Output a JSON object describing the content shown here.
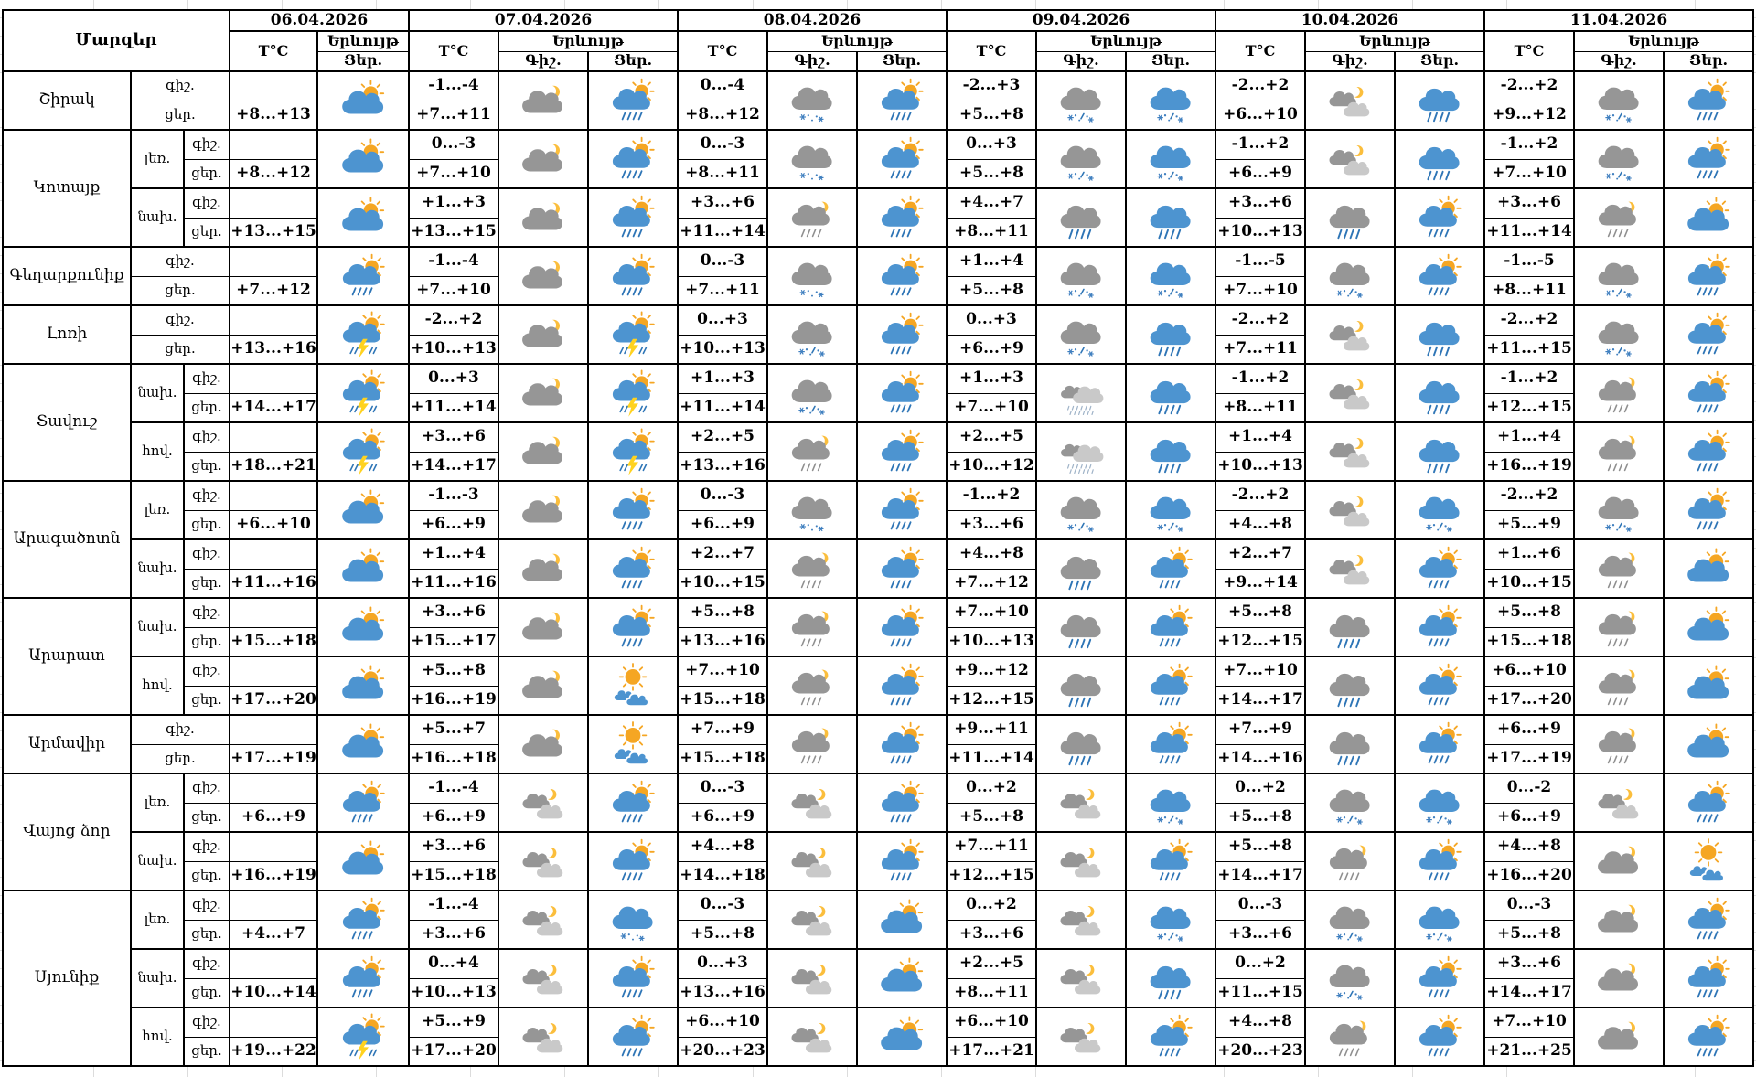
{
  "header": {
    "regions_label": "Մարզեր",
    "temp_label": "T°C",
    "phenomenon_label": "Երևույթ",
    "night_label": "Գիշ.",
    "day_label": "Ցեր.",
    "dates": [
      "06.04.2026",
      "07.04.2026",
      "08.04.2026",
      "09.04.2026",
      "10.04.2026",
      "11.04.2026"
    ]
  },
  "row_labels": {
    "night": "գիշ.",
    "day": "ցեր."
  },
  "colors": {
    "cloud_blue": "#4D94D0",
    "cloud_gray": "#969696",
    "cloud_light": "#C9C9C9",
    "sun": "#F5A623",
    "moon": "#FBBE3C",
    "rain": "#2E75B6",
    "rain_night": "#8F8F8F",
    "snow": "#3F7FBF",
    "drizzle": "#9FB3C8",
    "bolt": "#FFD21F",
    "border": "#000000",
    "gridline": "#DCDCDC"
  },
  "blocks": [
    {
      "region": "Շիրակ",
      "region_blocks": 1,
      "sub": null,
      "d06": {
        "day_temp": "+8...+13",
        "day_icon": "cloud-sun"
      },
      "days": [
        {
          "night_temp": "-1...-4",
          "day_temp": "+7...+11",
          "night_icon": "cloud-moon",
          "day_icon": "cloud-sun-rain"
        },
        {
          "night_temp": "0...-4",
          "day_temp": "+8...+12",
          "night_icon": "cloud-snow-gray",
          "day_icon": "cloud-sun-rain"
        },
        {
          "night_temp": "-2...+3",
          "day_temp": "+5...+8",
          "night_icon": "cloud-snow-rain-gray",
          "day_icon": "cloud-snow-rain-blue"
        },
        {
          "night_temp": "-2...+2",
          "day_temp": "+6...+10",
          "night_icon": "clouds-moon",
          "day_icon": "cloud-rain-blue"
        },
        {
          "night_temp": "-2...+2",
          "day_temp": "+9...+12",
          "night_icon": "cloud-snow-rain-gray",
          "day_icon": "cloud-sun-rain"
        }
      ]
    },
    {
      "region": "Կոտայք",
      "region_blocks": 2,
      "sub": "լեռ.",
      "d06": {
        "day_temp": "+8...+12",
        "day_icon": "cloud-sun"
      },
      "days": [
        {
          "night_temp": "0...-3",
          "day_temp": "+7...+10",
          "night_icon": "cloud-moon",
          "day_icon": "cloud-sun-rain"
        },
        {
          "night_temp": "0...-3",
          "day_temp": "+8...+11",
          "night_icon": "cloud-snow-gray",
          "day_icon": "cloud-sun-rain"
        },
        {
          "night_temp": "0...+3",
          "day_temp": "+5...+8",
          "night_icon": "cloud-snow-rain-gray",
          "day_icon": "cloud-snow-rain-blue"
        },
        {
          "night_temp": "-1...+2",
          "day_temp": "+6...+9",
          "night_icon": "clouds-moon",
          "day_icon": "cloud-rain-blue"
        },
        {
          "night_temp": "-1...+2",
          "day_temp": "+7...+10",
          "night_icon": "cloud-snow-rain-gray",
          "day_icon": "cloud-sun-rain"
        }
      ]
    },
    {
      "region": null,
      "sub": "նախ.",
      "d06": {
        "day_temp": "+13...+15",
        "day_icon": "cloud-sun"
      },
      "days": [
        {
          "night_temp": "+1...+3",
          "day_temp": "+13...+15",
          "night_icon": "cloud-moon",
          "day_icon": "cloud-sun-rain"
        },
        {
          "night_temp": "+3...+6",
          "day_temp": "+11...+14",
          "night_icon": "cloud-moon-rain",
          "day_icon": "cloud-sun-rain"
        },
        {
          "night_temp": "+4...+7",
          "day_temp": "+8...+11",
          "night_icon": "cloud-rain-gray",
          "day_icon": "cloud-rain-blue"
        },
        {
          "night_temp": "+3...+6",
          "day_temp": "+10...+13",
          "night_icon": "cloud-rain-gray",
          "day_icon": "cloud-sun-rain"
        },
        {
          "night_temp": "+3...+6",
          "day_temp": "+11...+14",
          "night_icon": "cloud-moon-rain",
          "day_icon": "cloud-sun"
        }
      ]
    },
    {
      "region": "Գեղարքունիք",
      "region_blocks": 1,
      "sub": null,
      "d06": {
        "day_temp": "+7...+12",
        "day_icon": "cloud-sun-rain"
      },
      "days": [
        {
          "night_temp": "-1...-4",
          "day_temp": "+7...+10",
          "night_icon": "cloud-moon",
          "day_icon": "cloud-sun-rain"
        },
        {
          "night_temp": "0...-3",
          "day_temp": "+7...+11",
          "night_icon": "cloud-snow-gray",
          "day_icon": "cloud-sun-rain"
        },
        {
          "night_temp": "+1...+4",
          "day_temp": "+5...+8",
          "night_icon": "cloud-snow-rain-gray",
          "day_icon": "cloud-snow-rain-blue"
        },
        {
          "night_temp": "-1...-5",
          "day_temp": "+7...+10",
          "night_icon": "cloud-snow-rain-gray",
          "day_icon": "cloud-sun-rain"
        },
        {
          "night_temp": "-1...-5",
          "day_temp": "+8...+11",
          "night_icon": "cloud-snow-rain-gray",
          "day_icon": "cloud-sun-rain"
        }
      ]
    },
    {
      "region": "Լոռի",
      "region_blocks": 1,
      "sub": null,
      "d06": {
        "day_temp": "+13...+16",
        "day_icon": "cloud-sun-thunder"
      },
      "days": [
        {
          "night_temp": "-2...+2",
          "day_temp": "+10...+13",
          "night_icon": "cloud-moon",
          "day_icon": "cloud-sun-thunder"
        },
        {
          "night_temp": "0...+3",
          "day_temp": "+10...+13",
          "night_icon": "cloud-snow-rain-gray",
          "day_icon": "cloud-sun-rain"
        },
        {
          "night_temp": "0...+3",
          "day_temp": "+6...+9",
          "night_icon": "cloud-snow-rain-gray",
          "day_icon": "cloud-rain-blue"
        },
        {
          "night_temp": "-2...+2",
          "day_temp": "+7...+11",
          "night_icon": "clouds-moon",
          "day_icon": "cloud-rain-blue"
        },
        {
          "night_temp": "-2...+2",
          "day_temp": "+11...+15",
          "night_icon": "cloud-snow-rain-gray",
          "day_icon": "cloud-sun-rain"
        }
      ]
    },
    {
      "region": "Տավուշ",
      "region_blocks": 2,
      "sub": "նախ.",
      "d06": {
        "day_temp": "+14...+17",
        "day_icon": "cloud-sun-thunder"
      },
      "days": [
        {
          "night_temp": "0...+3",
          "day_temp": "+11...+14",
          "night_icon": "cloud-moon",
          "day_icon": "cloud-sun-thunder"
        },
        {
          "night_temp": "+1...+3",
          "day_temp": "+11...+14",
          "night_icon": "cloud-snow-rain-gray",
          "day_icon": "cloud-sun-rain"
        },
        {
          "night_temp": "+1...+3",
          "day_temp": "+7...+10",
          "night_icon": "clouds-drizzle",
          "day_icon": "cloud-rain-blue"
        },
        {
          "night_temp": "-1...+2",
          "day_temp": "+8...+11",
          "night_icon": "clouds-moon",
          "day_icon": "cloud-rain-blue"
        },
        {
          "night_temp": "-1...+2",
          "day_temp": "+12...+15",
          "night_icon": "cloud-moon-rain",
          "day_icon": "cloud-sun-rain"
        }
      ]
    },
    {
      "region": null,
      "sub": "հով.",
      "d06": {
        "day_temp": "+18...+21",
        "day_icon": "cloud-sun-thunder"
      },
      "days": [
        {
          "night_temp": "+3...+6",
          "day_temp": "+14...+17",
          "night_icon": "cloud-moon",
          "day_icon": "cloud-sun-thunder"
        },
        {
          "night_temp": "+2...+5",
          "day_temp": "+13...+16",
          "night_icon": "cloud-moon-rain",
          "day_icon": "cloud-sun-rain"
        },
        {
          "night_temp": "+2...+5",
          "day_temp": "+10...+12",
          "night_icon": "clouds-drizzle",
          "day_icon": "cloud-rain-blue"
        },
        {
          "night_temp": "+1...+4",
          "day_temp": "+10...+13",
          "night_icon": "clouds-moon",
          "day_icon": "cloud-rain-blue"
        },
        {
          "night_temp": "+1...+4",
          "day_temp": "+16...+19",
          "night_icon": "cloud-moon-rain",
          "day_icon": "cloud-sun-rain"
        }
      ]
    },
    {
      "region": "Արագածոտն",
      "region_blocks": 2,
      "sub": "լեռ.",
      "d06": {
        "day_temp": "+6...+10",
        "day_icon": "cloud-sun"
      },
      "days": [
        {
          "night_temp": "-1...-3",
          "day_temp": "+6...+9",
          "night_icon": "cloud-moon",
          "day_icon": "cloud-sun-rain"
        },
        {
          "night_temp": "0...-3",
          "day_temp": "+6...+9",
          "night_icon": "cloud-snow-gray",
          "day_icon": "cloud-sun-rain"
        },
        {
          "night_temp": "-1...+2",
          "day_temp": "+3...+6",
          "night_icon": "cloud-snow-rain-gray",
          "day_icon": "cloud-snow-rain-blue"
        },
        {
          "night_temp": "-2...+2",
          "day_temp": "+4...+8",
          "night_icon": "clouds-moon",
          "day_icon": "cloud-snow-rain-blue"
        },
        {
          "night_temp": "-2...+2",
          "day_temp": "+5...+9",
          "night_icon": "cloud-snow-rain-gray",
          "day_icon": "cloud-sun-rain"
        }
      ]
    },
    {
      "region": null,
      "sub": "նախ.",
      "d06": {
        "day_temp": "+11...+16",
        "day_icon": "cloud-sun"
      },
      "days": [
        {
          "night_temp": "+1...+4",
          "day_temp": "+11...+16",
          "night_icon": "cloud-moon",
          "day_icon": "cloud-sun-rain"
        },
        {
          "night_temp": "+2...+7",
          "day_temp": "+10...+15",
          "night_icon": "cloud-moon-rain",
          "day_icon": "cloud-sun-rain"
        },
        {
          "night_temp": "+4...+8",
          "day_temp": "+7...+12",
          "night_icon": "cloud-rain-gray",
          "day_icon": "cloud-sun-rain"
        },
        {
          "night_temp": "+2...+7",
          "day_temp": "+9...+14",
          "night_icon": "clouds-moon",
          "day_icon": "cloud-sun-rain"
        },
        {
          "night_temp": "+1...+6",
          "day_temp": "+10...+15",
          "night_icon": "cloud-moon-rain",
          "day_icon": "cloud-sun"
        }
      ]
    },
    {
      "region": "Արարատ",
      "region_blocks": 2,
      "sub": "նախ.",
      "d06": {
        "day_temp": "+15...+18",
        "day_icon": "cloud-sun"
      },
      "days": [
        {
          "night_temp": "+3...+6",
          "day_temp": "+15...+17",
          "night_icon": "cloud-moon",
          "day_icon": "cloud-sun-rain"
        },
        {
          "night_temp": "+5...+8",
          "day_temp": "+13...+16",
          "night_icon": "cloud-moon-rain",
          "day_icon": "cloud-sun-rain"
        },
        {
          "night_temp": "+7...+10",
          "day_temp": "+10...+13",
          "night_icon": "cloud-rain-gray",
          "day_icon": "cloud-sun-rain"
        },
        {
          "night_temp": "+5...+8",
          "day_temp": "+12...+15",
          "night_icon": "cloud-rain-gray",
          "day_icon": "cloud-sun-rain"
        },
        {
          "night_temp": "+5...+8",
          "day_temp": "+15...+18",
          "night_icon": "cloud-moon-rain",
          "day_icon": "cloud-sun"
        }
      ]
    },
    {
      "region": null,
      "sub": "հով.",
      "d06": {
        "day_temp": "+17...+20",
        "day_icon": "cloud-sun"
      },
      "days": [
        {
          "night_temp": "+5...+8",
          "day_temp": "+16...+19",
          "night_icon": "cloud-moon",
          "day_icon": "sun-fog"
        },
        {
          "night_temp": "+7...+10",
          "day_temp": "+15...+18",
          "night_icon": "cloud-moon-rain",
          "day_icon": "cloud-sun-rain"
        },
        {
          "night_temp": "+9...+12",
          "day_temp": "+12...+15",
          "night_icon": "cloud-rain-gray",
          "day_icon": "cloud-sun-rain"
        },
        {
          "night_temp": "+7...+10",
          "day_temp": "+14...+17",
          "night_icon": "cloud-rain-gray",
          "day_icon": "cloud-sun-rain"
        },
        {
          "night_temp": "+6...+10",
          "day_temp": "+17...+20",
          "night_icon": "cloud-moon-rain",
          "day_icon": "cloud-sun"
        }
      ]
    },
    {
      "region": "Արմավիր",
      "region_blocks": 1,
      "sub": null,
      "d06": {
        "day_temp": "+17...+19",
        "day_icon": "cloud-sun"
      },
      "days": [
        {
          "night_temp": "+5...+7",
          "day_temp": "+16...+18",
          "night_icon": "cloud-moon",
          "day_icon": "sun-fog"
        },
        {
          "night_temp": "+7...+9",
          "day_temp": "+15...+18",
          "night_icon": "cloud-moon-rain",
          "day_icon": "cloud-sun-rain"
        },
        {
          "night_temp": "+9...+11",
          "day_temp": "+11...+14",
          "night_icon": "cloud-rain-gray",
          "day_icon": "cloud-sun-rain"
        },
        {
          "night_temp": "+7...+9",
          "day_temp": "+14...+16",
          "night_icon": "cloud-rain-gray",
          "day_icon": "cloud-sun-rain"
        },
        {
          "night_temp": "+6...+9",
          "day_temp": "+17...+19",
          "night_icon": "cloud-moon-rain",
          "day_icon": "cloud-sun"
        }
      ]
    },
    {
      "region": "Վայոց ձոր",
      "region_blocks": 2,
      "sub": "լեռ.",
      "d06": {
        "day_temp": "+6...+9",
        "day_icon": "cloud-sun-rain"
      },
      "days": [
        {
          "night_temp": "-1...-4",
          "day_temp": "+6...+9",
          "night_icon": "clouds-moon",
          "day_icon": "cloud-sun-rain"
        },
        {
          "night_temp": "0...-3",
          "day_temp": "+6...+9",
          "night_icon": "clouds-moon",
          "day_icon": "cloud-sun-rain"
        },
        {
          "night_temp": "0...+2",
          "day_temp": "+5...+8",
          "night_icon": "clouds-moon",
          "day_icon": "cloud-snow-rain-blue"
        },
        {
          "night_temp": "0...+2",
          "day_temp": "+5...+8",
          "night_icon": "cloud-snow-rain-gray",
          "day_icon": "cloud-snow-rain-blue"
        },
        {
          "night_temp": "0...-2",
          "day_temp": "+6...+9",
          "night_icon": "clouds-moon",
          "day_icon": "cloud-sun-rain"
        }
      ]
    },
    {
      "region": null,
      "sub": "նախ.",
      "d06": {
        "day_temp": "+16...+19",
        "day_icon": "cloud-sun"
      },
      "days": [
        {
          "night_temp": "+3...+6",
          "day_temp": "+15...+18",
          "night_icon": "clouds-moon",
          "day_icon": "cloud-sun-rain"
        },
        {
          "night_temp": "+4...+8",
          "day_temp": "+14...+18",
          "night_icon": "clouds-moon",
          "day_icon": "cloud-sun-rain"
        },
        {
          "night_temp": "+7...+11",
          "day_temp": "+12...+15",
          "night_icon": "clouds-moon",
          "day_icon": "cloud-sun-rain"
        },
        {
          "night_temp": "+5...+8",
          "day_temp": "+14...+17",
          "night_icon": "cloud-moon-rain",
          "day_icon": "cloud-sun-rain"
        },
        {
          "night_temp": "+4...+8",
          "day_temp": "+16...+20",
          "night_icon": "cloud-moon",
          "day_icon": "sun-fog"
        }
      ]
    },
    {
      "region": "Սյունիք",
      "region_blocks": 3,
      "sub": "լեռ.",
      "d06": {
        "day_temp": "+4...+7",
        "day_icon": "cloud-sun-rain"
      },
      "days": [
        {
          "night_temp": "-1...-4",
          "day_temp": "+3...+6",
          "night_icon": "clouds-moon",
          "day_icon": "cloud-snow-blue"
        },
        {
          "night_temp": "0...-3",
          "day_temp": "+5...+8",
          "night_icon": "clouds-moon",
          "day_icon": "cloud-sun"
        },
        {
          "night_temp": "0...+2",
          "day_temp": "+3...+6",
          "night_icon": "clouds-moon",
          "day_icon": "cloud-snow-rain-blue"
        },
        {
          "night_temp": "0...-3",
          "day_temp": "+3...+6",
          "night_icon": "cloud-snow-rain-gray",
          "day_icon": "cloud-snow-rain-blue"
        },
        {
          "night_temp": "0...-3",
          "day_temp": "+5...+8",
          "night_icon": "cloud-moon",
          "day_icon": "cloud-sun-rain"
        }
      ]
    },
    {
      "region": null,
      "sub": "նախ.",
      "d06": {
        "day_temp": "+10...+14",
        "day_icon": "cloud-sun-rain"
      },
      "days": [
        {
          "night_temp": "0...+4",
          "day_temp": "+10...+13",
          "night_icon": "clouds-moon",
          "day_icon": "cloud-sun-rain"
        },
        {
          "night_temp": "0...+3",
          "day_temp": "+13...+16",
          "night_icon": "clouds-moon",
          "day_icon": "cloud-sun"
        },
        {
          "night_temp": "+2...+5",
          "day_temp": "+8...+11",
          "night_icon": "clouds-moon",
          "day_icon": "cloud-rain-blue"
        },
        {
          "night_temp": "0...+2",
          "day_temp": "+11...+15",
          "night_icon": "cloud-snow-rain-gray",
          "day_icon": "cloud-sun-rain"
        },
        {
          "night_temp": "+3...+6",
          "day_temp": "+14...+17",
          "night_icon": "cloud-moon",
          "day_icon": "cloud-sun-rain"
        }
      ]
    },
    {
      "region": null,
      "sub": "հով.",
      "d06": {
        "day_temp": "+19...+22",
        "day_icon": "cloud-sun-thunder"
      },
      "days": [
        {
          "night_temp": "+5...+9",
          "day_temp": "+17...+20",
          "night_icon": "clouds-moon",
          "day_icon": "cloud-sun-rain"
        },
        {
          "night_temp": "+6...+10",
          "day_temp": "+20...+23",
          "night_icon": "clouds-moon",
          "day_icon": "cloud-sun"
        },
        {
          "night_temp": "+6...+10",
          "day_temp": "+17...+21",
          "night_icon": "clouds-moon",
          "day_icon": "cloud-sun-rain"
        },
        {
          "night_temp": "+4...+8",
          "day_temp": "+20...+23",
          "night_icon": "cloud-moon-rain",
          "day_icon": "cloud-sun-rain"
        },
        {
          "night_temp": "+7...+10",
          "day_temp": "+21...+25",
          "night_icon": "cloud-moon",
          "day_icon": "cloud-sun-rain"
        }
      ]
    }
  ]
}
